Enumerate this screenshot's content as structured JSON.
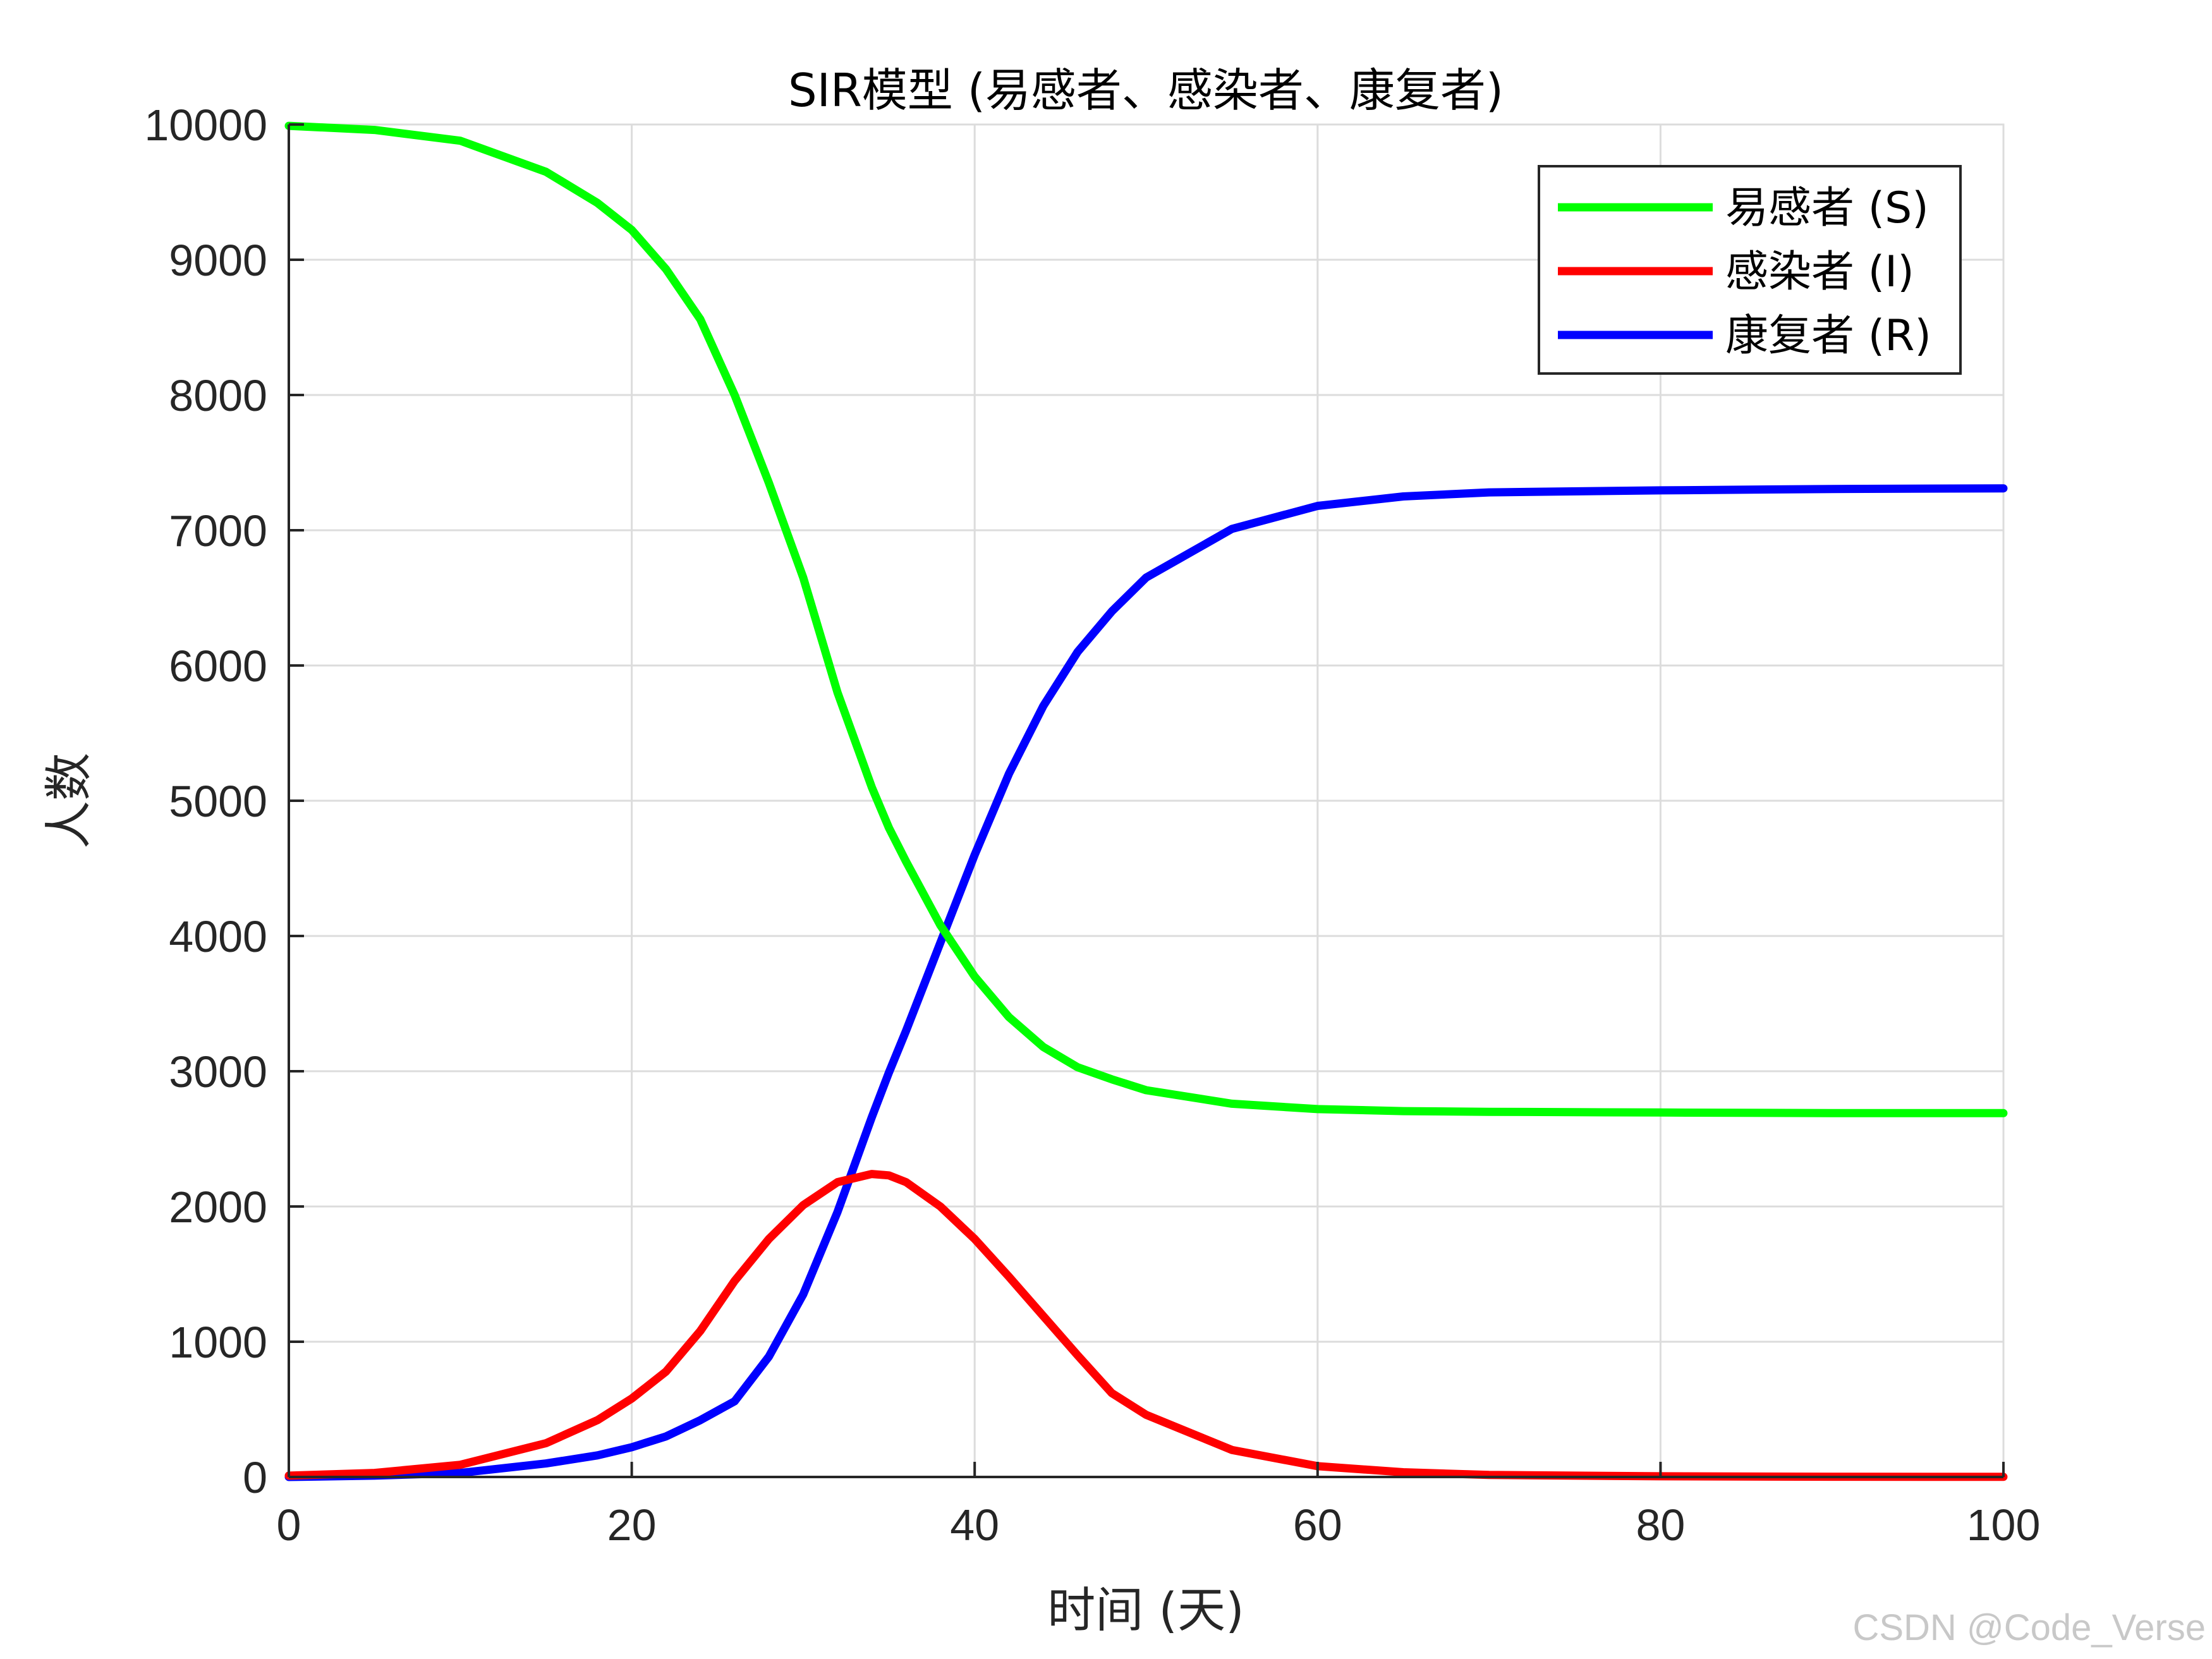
{
  "chart_data": {
    "type": "line",
    "title": "SIR模型 (易感者、感染者、康复者)",
    "xlabel": "时间 (天)",
    "ylabel": "人数",
    "xlim": [
      0,
      100
    ],
    "ylim": [
      0,
      10000
    ],
    "xticks": [
      "0",
      "20",
      "40",
      "60",
      "80",
      "100"
    ],
    "yticks": [
      "0",
      "1000",
      "2000",
      "3000",
      "4000",
      "5000",
      "6000",
      "7000",
      "8000",
      "9000",
      "10000"
    ],
    "grid": true,
    "legend_position": "top-right",
    "x": [
      0,
      5,
      10,
      15,
      18,
      20,
      22,
      24,
      26,
      28,
      30,
      32,
      34,
      35,
      36,
      38,
      40,
      42,
      44,
      46,
      48,
      50,
      55,
      60,
      65,
      70,
      80,
      90,
      100
    ],
    "series": [
      {
        "name": "易感者 (S)",
        "color": "#00ff00",
        "values": [
          9990,
          9960,
          9880,
          9650,
          9420,
          9220,
          8930,
          8560,
          8000,
          7350,
          6650,
          5800,
          5100,
          4800,
          4550,
          4080,
          3700,
          3400,
          3180,
          3030,
          2940,
          2860,
          2760,
          2720,
          2705,
          2700,
          2695,
          2690,
          2690
        ]
      },
      {
        "name": "感染者 (I)",
        "color": "#ff0000",
        "values": [
          10,
          30,
          90,
          250,
          420,
          580,
          780,
          1080,
          1450,
          1760,
          2010,
          2180,
          2240,
          2230,
          2180,
          2000,
          1760,
          1480,
          1190,
          900,
          620,
          460,
          200,
          80,
          35,
          15,
          5,
          2,
          1
        ]
      },
      {
        "name": "康复者 (R)",
        "color": "#0000ff",
        "values": [
          0,
          10,
          30,
          100,
          160,
          220,
          300,
          420,
          560,
          890,
          1350,
          1960,
          2660,
          2990,
          3300,
          3950,
          4600,
          5200,
          5700,
          6100,
          6400,
          6650,
          7010,
          7180,
          7250,
          7280,
          7295,
          7305,
          7310
        ]
      }
    ]
  },
  "watermark": "CSDN @Code_Verse"
}
